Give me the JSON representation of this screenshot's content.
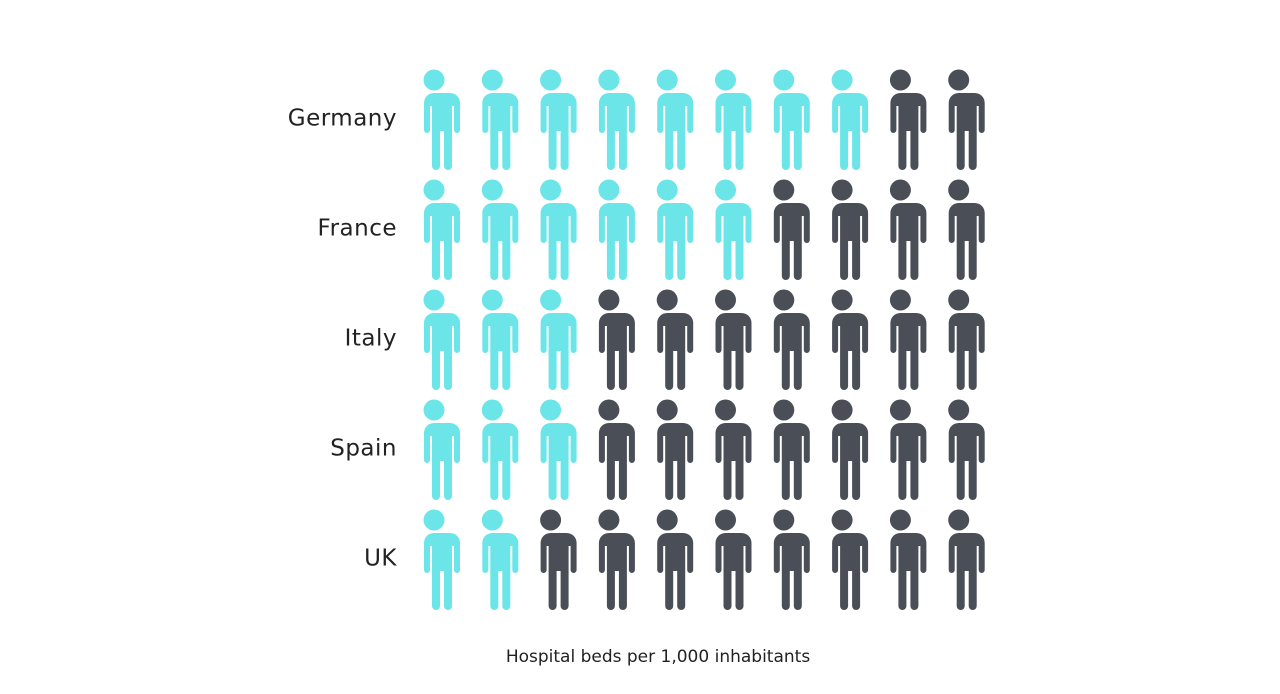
{
  "chart_data": {
    "type": "pictogram",
    "categories": [
      "Germany",
      "France",
      "Italy",
      "Spain",
      "UK"
    ],
    "values": [
      8,
      6,
      3,
      3,
      2
    ],
    "xlim": [
      0,
      10
    ],
    "color": "#6ce5e8",
    "rest_color": "#4a4f57",
    "x_label": "Hospital beds per 1,000 inhabitants"
  }
}
